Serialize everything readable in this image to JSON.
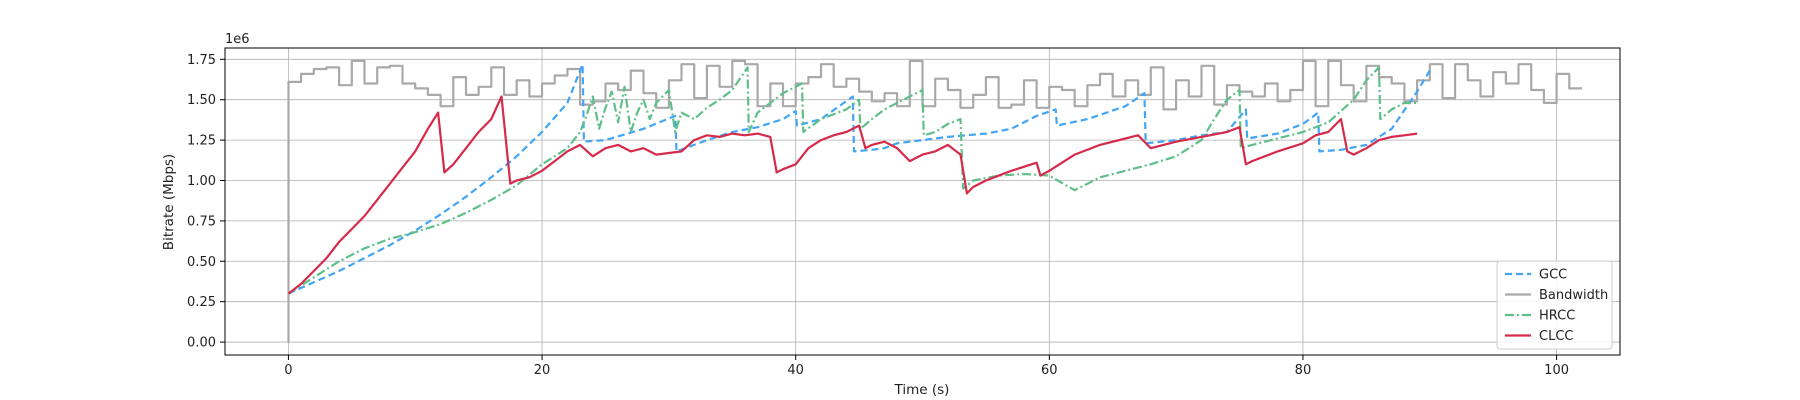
{
  "chart_data": {
    "type": "line",
    "xlabel": "Time (s)",
    "ylabel": "Bitrate (Mbps)",
    "y_offset_text": "1e6",
    "xlim": [
      -5,
      105
    ],
    "ylim": [
      -80000,
      1820000
    ],
    "x_ticks": [
      0,
      20,
      40,
      60,
      80,
      100
    ],
    "x_tick_labels": [
      "0",
      "20",
      "40",
      "60",
      "80",
      "100"
    ],
    "y_ticks": [
      0,
      250000,
      500000,
      750000,
      1000000,
      1250000,
      1500000,
      1750000
    ],
    "y_tick_labels": [
      "0.00",
      "0.25",
      "0.50",
      "0.75",
      "1.00",
      "1.25",
      "1.50",
      "1.75"
    ],
    "grid": true,
    "legend_position": "lower-right",
    "series": [
      {
        "name": "GCC",
        "color": "#42a5f5",
        "style": "dashed",
        "x": [
          0,
          2,
          4,
          6,
          8,
          10,
          12,
          14,
          16,
          18,
          20,
          22,
          23.2,
          23.3,
          25,
          28,
          30.5,
          30.6,
          33,
          35,
          37,
          39,
          40,
          40.1,
          42,
          44.5,
          44.6,
          46,
          47,
          48,
          50,
          52,
          55,
          57,
          59,
          60.5,
          60.6,
          63,
          66,
          67.5,
          67.6,
          70,
          72,
          74,
          75.5,
          75.6,
          78,
          80,
          81.2,
          81.3,
          83,
          85,
          87,
          89,
          90
        ],
        "y": [
          300000,
          370000,
          440000,
          520000,
          600000,
          690000,
          790000,
          900000,
          1020000,
          1150000,
          1300000,
          1480000,
          1720000,
          1240000,
          1250000,
          1320000,
          1400000,
          1180000,
          1250000,
          1300000,
          1330000,
          1380000,
          1430000,
          1340000,
          1380000,
          1520000,
          1180000,
          1190000,
          1200000,
          1230000,
          1250000,
          1270000,
          1290000,
          1320000,
          1400000,
          1440000,
          1340000,
          1380000,
          1460000,
          1540000,
          1230000,
          1250000,
          1280000,
          1300000,
          1440000,
          1260000,
          1290000,
          1350000,
          1420000,
          1180000,
          1190000,
          1220000,
          1320000,
          1550000,
          1680000
        ]
      },
      {
        "name": "Bandwidth",
        "color": "#a9a9a9",
        "style": "step",
        "x": [
          0,
          0.01,
          1,
          2,
          3,
          4,
          5,
          6,
          7,
          8,
          9,
          10,
          11,
          12,
          13,
          14,
          15,
          16,
          17,
          18,
          19,
          20,
          21,
          22,
          23,
          24,
          25,
          26,
          27,
          28,
          29,
          30,
          31,
          32,
          33,
          34,
          35,
          36,
          37,
          38,
          39,
          40,
          41,
          42,
          43,
          44,
          45,
          46,
          47,
          48,
          49,
          50,
          51,
          52,
          53,
          54,
          55,
          56,
          57,
          58,
          59,
          60,
          61,
          62,
          63,
          64,
          65,
          66,
          67,
          68,
          69,
          70,
          71,
          72,
          73,
          74,
          75,
          76,
          77,
          78,
          79,
          80,
          81,
          82,
          83,
          84,
          85,
          86,
          87,
          88,
          89,
          90,
          91,
          92,
          93,
          94,
          95,
          96,
          97,
          98,
          99,
          100,
          101
        ],
        "y": [
          0,
          1610000,
          1660000,
          1690000,
          1700000,
          1590000,
          1740000,
          1600000,
          1700000,
          1710000,
          1600000,
          1570000,
          1530000,
          1460000,
          1640000,
          1530000,
          1580000,
          1700000,
          1530000,
          1620000,
          1520000,
          1600000,
          1650000,
          1690000,
          1470000,
          1490000,
          1600000,
          1560000,
          1680000,
          1540000,
          1450000,
          1620000,
          1720000,
          1510000,
          1710000,
          1580000,
          1740000,
          1720000,
          1460000,
          1600000,
          1460000,
          1600000,
          1640000,
          1720000,
          1580000,
          1630000,
          1550000,
          1490000,
          1540000,
          1460000,
          1740000,
          1460000,
          1630000,
          1560000,
          1450000,
          1530000,
          1640000,
          1450000,
          1470000,
          1620000,
          1450000,
          1580000,
          1560000,
          1460000,
          1590000,
          1660000,
          1520000,
          1620000,
          1530000,
          1700000,
          1440000,
          1620000,
          1520000,
          1710000,
          1470000,
          1590000,
          1550000,
          1520000,
          1600000,
          1490000,
          1560000,
          1740000,
          1460000,
          1740000,
          1590000,
          1490000,
          1710000,
          1640000,
          1600000,
          1490000,
          1620000,
          1720000,
          1510000,
          1720000,
          1620000,
          1520000,
          1670000,
          1600000,
          1720000,
          1560000,
          1480000,
          1660000,
          1570000
        ]
      },
      {
        "name": "HRCC",
        "color": "#5fbf8a",
        "style": "dashdot",
        "x": [
          0,
          2,
          4,
          6,
          8,
          10,
          12,
          14,
          16,
          18,
          20,
          22,
          23,
          23.5,
          24,
          24.5,
          25,
          25.5,
          26,
          26.5,
          27,
          27.5,
          28,
          28.5,
          29,
          29.5,
          30,
          30.5,
          31,
          32,
          33,
          34,
          35,
          36.2,
          36.3,
          37,
          38,
          39,
          40.5,
          40.6,
          42,
          44,
          45,
          45.1,
          46,
          47,
          48,
          49,
          50,
          50.1,
          51,
          52,
          53,
          53.2,
          54,
          56,
          58,
          60,
          62,
          64,
          66,
          68,
          70,
          72,
          73,
          74,
          75,
          75.1,
          76,
          78,
          80,
          82,
          84,
          85,
          86,
          86.1,
          87,
          88,
          89
        ],
        "y": [
          300000,
          400000,
          500000,
          580000,
          640000,
          680000,
          730000,
          800000,
          880000,
          970000,
          1100000,
          1200000,
          1300000,
          1400000,
          1520000,
          1320000,
          1450000,
          1550000,
          1360000,
          1580000,
          1300000,
          1420000,
          1500000,
          1380000,
          1480000,
          1520000,
          1560000,
          1300000,
          1420000,
          1380000,
          1450000,
          1500000,
          1560000,
          1700000,
          1300000,
          1420000,
          1480000,
          1540000,
          1600000,
          1300000,
          1380000,
          1440000,
          1500000,
          1320000,
          1380000,
          1440000,
          1480000,
          1520000,
          1560000,
          1280000,
          1300000,
          1350000,
          1380000,
          950000,
          1000000,
          1030000,
          1040000,
          1030000,
          940000,
          1020000,
          1060000,
          1100000,
          1150000,
          1250000,
          1380000,
          1500000,
          1560000,
          1200000,
          1220000,
          1260000,
          1300000,
          1360000,
          1500000,
          1620000,
          1700000,
          1380000,
          1440000,
          1480000,
          1480000
        ]
      },
      {
        "name": "CLCC",
        "color": "#d62a4a",
        "style": "solid",
        "x": [
          0,
          1,
          2,
          3,
          4,
          5,
          6,
          7,
          8,
          9,
          10,
          11,
          11.8,
          12.3,
          13,
          14,
          15,
          16,
          16.8,
          17.5,
          18,
          19,
          20,
          21,
          22,
          23,
          24,
          25,
          26,
          27,
          28,
          29,
          30,
          31,
          32,
          33,
          34,
          35,
          36,
          37,
          38,
          38.5,
          39,
          40,
          41,
          42,
          43,
          44,
          45,
          45.5,
          46,
          47,
          48,
          49,
          50,
          51,
          52,
          53,
          53.5,
          54,
          55,
          57,
          59,
          59.3,
          60,
          62,
          64,
          66,
          67,
          68,
          70,
          72,
          74,
          75,
          75.5,
          76,
          78,
          80,
          81,
          82,
          83,
          83.5,
          84,
          85,
          86,
          87,
          88,
          89
        ],
        "y": [
          300000,
          360000,
          440000,
          520000,
          620000,
          700000,
          780000,
          880000,
          980000,
          1080000,
          1180000,
          1320000,
          1420000,
          1050000,
          1100000,
          1200000,
          1300000,
          1380000,
          1520000,
          980000,
          1000000,
          1020000,
          1060000,
          1120000,
          1180000,
          1220000,
          1150000,
          1200000,
          1220000,
          1180000,
          1200000,
          1160000,
          1170000,
          1180000,
          1250000,
          1280000,
          1270000,
          1290000,
          1280000,
          1290000,
          1270000,
          1050000,
          1070000,
          1100000,
          1200000,
          1250000,
          1280000,
          1300000,
          1340000,
          1200000,
          1220000,
          1240000,
          1200000,
          1120000,
          1160000,
          1180000,
          1220000,
          1160000,
          920000,
          960000,
          1000000,
          1060000,
          1110000,
          1030000,
          1060000,
          1160000,
          1220000,
          1260000,
          1280000,
          1200000,
          1240000,
          1270000,
          1300000,
          1330000,
          1100000,
          1120000,
          1180000,
          1230000,
          1280000,
          1300000,
          1380000,
          1180000,
          1160000,
          1200000,
          1250000,
          1270000,
          1280000,
          1290000
        ]
      }
    ]
  }
}
